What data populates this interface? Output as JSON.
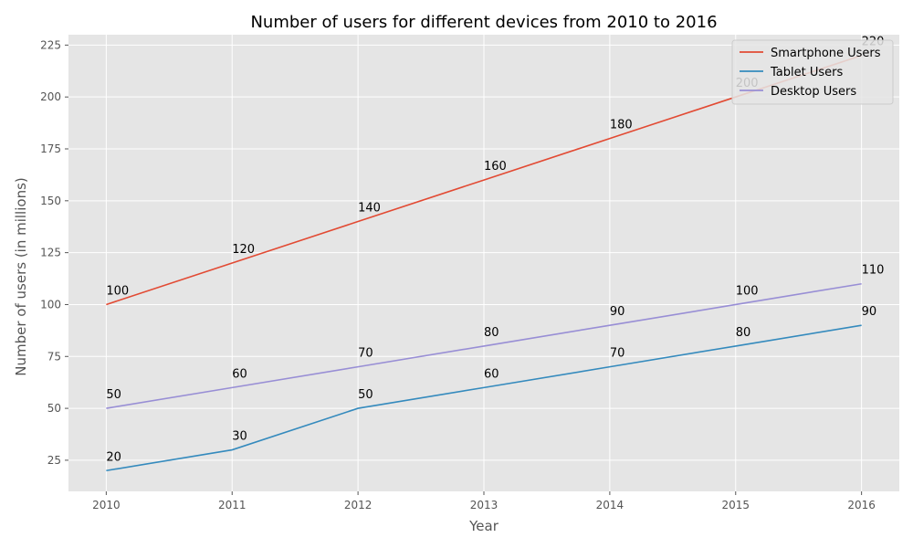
{
  "chart_data": {
    "type": "line",
    "title": "Number of users for different devices from 2010 to 2016",
    "xlabel": "Year",
    "ylabel": "Number of users (in millions)",
    "x": [
      2010,
      2011,
      2012,
      2013,
      2014,
      2015,
      2016
    ],
    "x_tick_labels": [
      "2010",
      "2011",
      "2012",
      "2013",
      "2014",
      "2015",
      "2016"
    ],
    "xlim": [
      2009.7,
      2016.3
    ],
    "ylim": [
      10,
      230
    ],
    "y_ticks": [
      25,
      50,
      75,
      100,
      125,
      150,
      175,
      200,
      225
    ],
    "y_tick_labels": [
      "25",
      "50",
      "75",
      "100",
      "125",
      "150",
      "175",
      "200",
      "225"
    ],
    "grid": true,
    "legend_position": "top-right",
    "series": [
      {
        "name": "Smartphone Users",
        "color": "#E24A33",
        "values": [
          100,
          120,
          140,
          160,
          180,
          200,
          220
        ],
        "labels": [
          "100",
          "120",
          "140",
          "160",
          "180",
          "200",
          "220"
        ]
      },
      {
        "name": "Tablet Users",
        "color": "#348ABD",
        "values": [
          20,
          30,
          50,
          60,
          70,
          80,
          90
        ],
        "labels": [
          "20",
          "30",
          "50",
          "60",
          "70",
          "80",
          "90"
        ]
      },
      {
        "name": "Desktop Users",
        "color": "#988ED5",
        "values": [
          50,
          60,
          70,
          80,
          90,
          100,
          110
        ],
        "labels": [
          "50",
          "60",
          "70",
          "80",
          "90",
          "100",
          "110"
        ]
      }
    ]
  },
  "colors": {
    "plot_background": "#E5E5E5",
    "grid": "#FFFFFF",
    "tick": "#555555"
  }
}
